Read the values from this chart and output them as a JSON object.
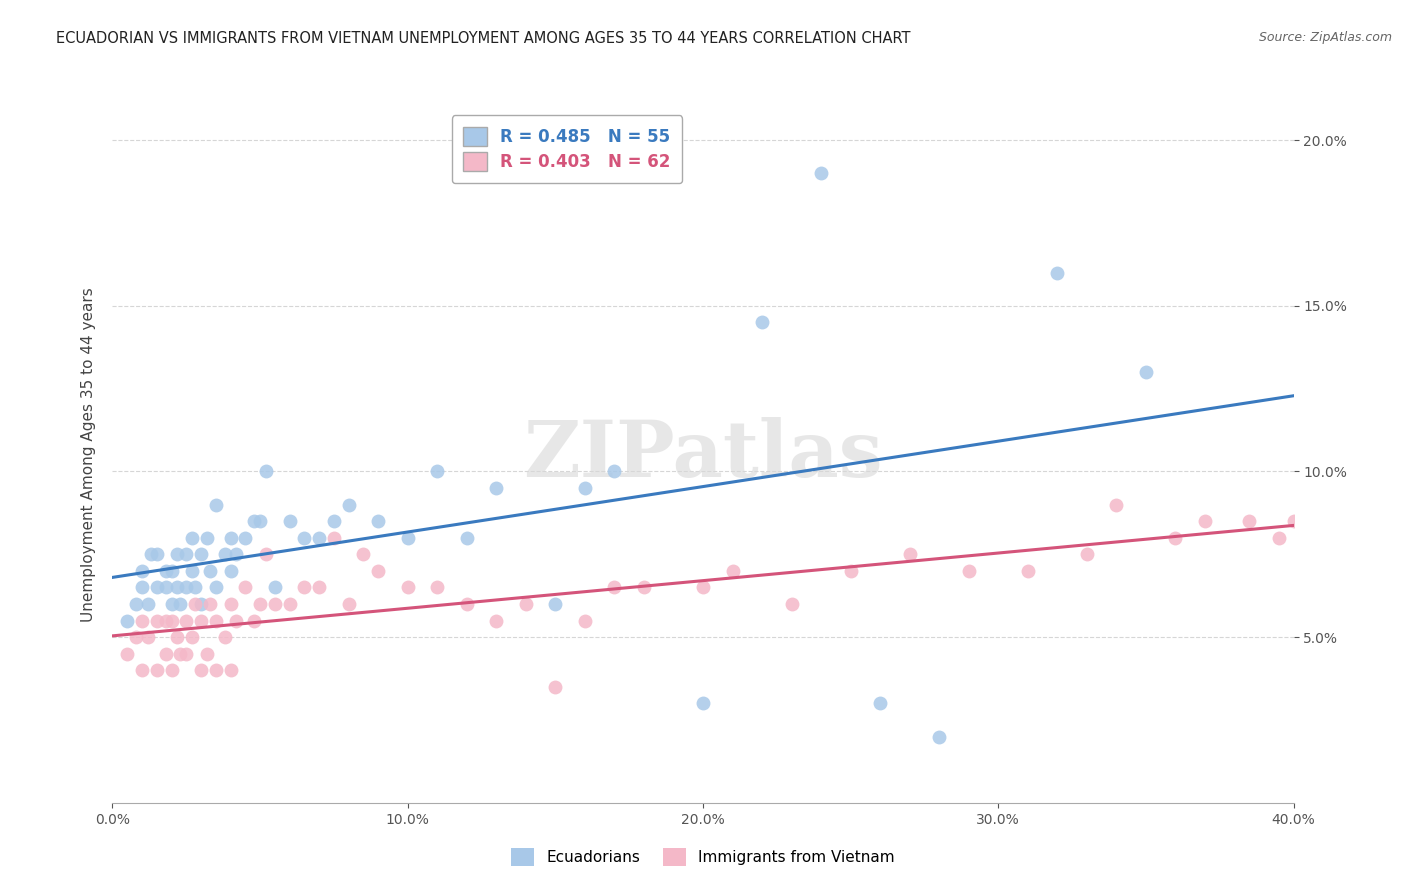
{
  "title": "ECUADORIAN VS IMMIGRANTS FROM VIETNAM UNEMPLOYMENT AMONG AGES 35 TO 44 YEARS CORRELATION CHART",
  "source": "Source: ZipAtlas.com",
  "ylabel": "Unemployment Among Ages 35 to 44 years",
  "xlim": [
    0.0,
    0.4
  ],
  "ylim": [
    0.0,
    0.21
  ],
  "yticks": [
    0.05,
    0.1,
    0.15,
    0.2
  ],
  "xticks": [
    0.0,
    0.1,
    0.2,
    0.3,
    0.4
  ],
  "blue_R": 0.485,
  "blue_N": 55,
  "pink_R": 0.403,
  "pink_N": 62,
  "blue_color": "#a8c8e8",
  "pink_color": "#f4b8c8",
  "blue_line_color": "#3a7abf",
  "pink_line_color": "#d4547a",
  "watermark": "ZIPatlas",
  "blue_scatter_x": [
    0.005,
    0.008,
    0.01,
    0.01,
    0.012,
    0.013,
    0.015,
    0.015,
    0.018,
    0.018,
    0.02,
    0.02,
    0.022,
    0.022,
    0.023,
    0.025,
    0.025,
    0.027,
    0.027,
    0.028,
    0.03,
    0.03,
    0.032,
    0.033,
    0.035,
    0.035,
    0.038,
    0.04,
    0.04,
    0.042,
    0.045,
    0.048,
    0.05,
    0.052,
    0.055,
    0.06,
    0.065,
    0.07,
    0.075,
    0.08,
    0.09,
    0.1,
    0.11,
    0.12,
    0.13,
    0.15,
    0.16,
    0.17,
    0.2,
    0.22,
    0.24,
    0.26,
    0.28,
    0.32,
    0.35
  ],
  "blue_scatter_y": [
    0.055,
    0.06,
    0.065,
    0.07,
    0.06,
    0.075,
    0.065,
    0.075,
    0.065,
    0.07,
    0.06,
    0.07,
    0.065,
    0.075,
    0.06,
    0.065,
    0.075,
    0.07,
    0.08,
    0.065,
    0.06,
    0.075,
    0.08,
    0.07,
    0.065,
    0.09,
    0.075,
    0.07,
    0.08,
    0.075,
    0.08,
    0.085,
    0.085,
    0.1,
    0.065,
    0.085,
    0.08,
    0.08,
    0.085,
    0.09,
    0.085,
    0.08,
    0.1,
    0.08,
    0.095,
    0.06,
    0.095,
    0.1,
    0.03,
    0.145,
    0.19,
    0.03,
    0.02,
    0.16,
    0.13
  ],
  "pink_scatter_x": [
    0.005,
    0.008,
    0.01,
    0.01,
    0.012,
    0.015,
    0.015,
    0.018,
    0.018,
    0.02,
    0.02,
    0.022,
    0.023,
    0.025,
    0.025,
    0.027,
    0.028,
    0.03,
    0.03,
    0.032,
    0.033,
    0.035,
    0.035,
    0.038,
    0.04,
    0.04,
    0.042,
    0.045,
    0.048,
    0.05,
    0.052,
    0.055,
    0.06,
    0.065,
    0.07,
    0.075,
    0.08,
    0.085,
    0.09,
    0.1,
    0.11,
    0.12,
    0.13,
    0.14,
    0.15,
    0.16,
    0.17,
    0.18,
    0.2,
    0.21,
    0.23,
    0.25,
    0.27,
    0.29,
    0.31,
    0.33,
    0.34,
    0.36,
    0.37,
    0.385,
    0.395,
    0.4
  ],
  "pink_scatter_y": [
    0.045,
    0.05,
    0.04,
    0.055,
    0.05,
    0.04,
    0.055,
    0.045,
    0.055,
    0.04,
    0.055,
    0.05,
    0.045,
    0.045,
    0.055,
    0.05,
    0.06,
    0.04,
    0.055,
    0.045,
    0.06,
    0.04,
    0.055,
    0.05,
    0.04,
    0.06,
    0.055,
    0.065,
    0.055,
    0.06,
    0.075,
    0.06,
    0.06,
    0.065,
    0.065,
    0.08,
    0.06,
    0.075,
    0.07,
    0.065,
    0.065,
    0.06,
    0.055,
    0.06,
    0.035,
    0.055,
    0.065,
    0.065,
    0.065,
    0.07,
    0.06,
    0.07,
    0.075,
    0.07,
    0.07,
    0.075,
    0.09,
    0.08,
    0.085,
    0.085,
    0.08,
    0.085
  ]
}
